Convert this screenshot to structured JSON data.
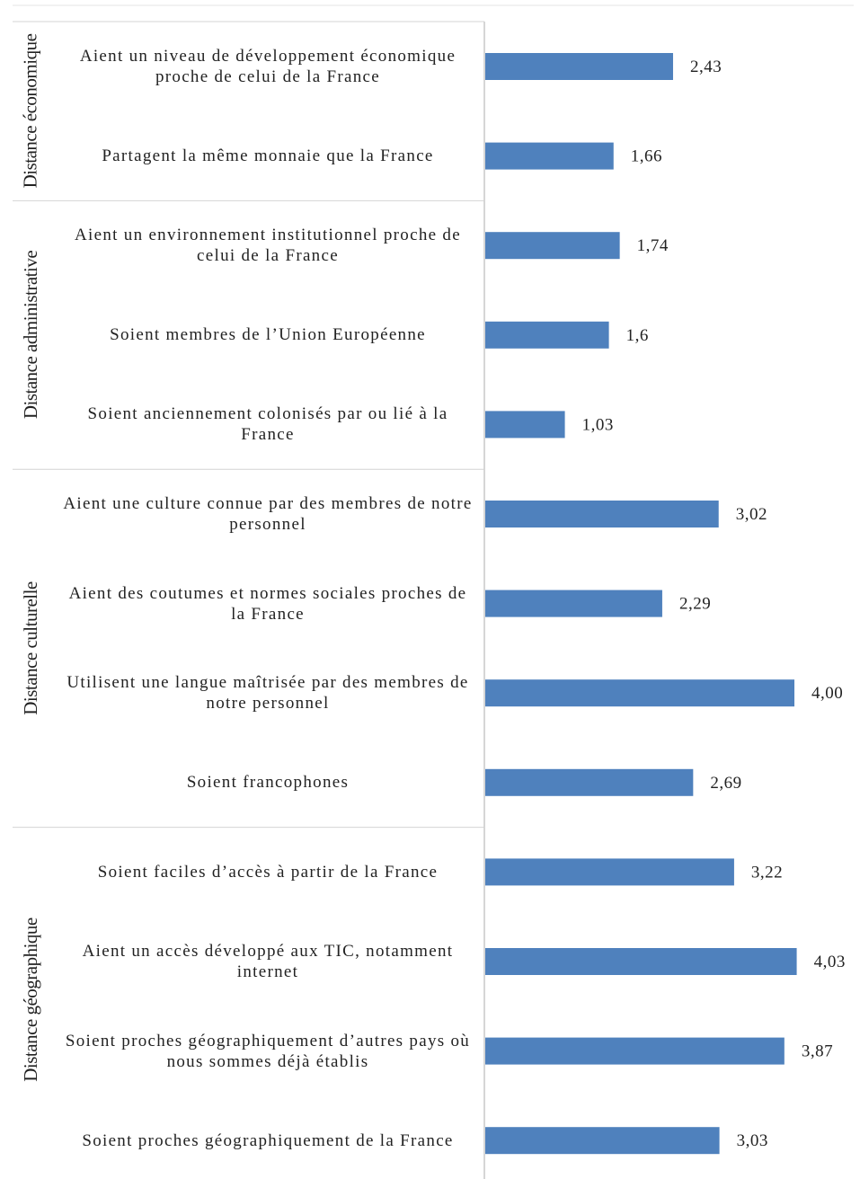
{
  "chart_data": {
    "type": "bar",
    "orientation": "horizontal",
    "bar_color": "#4F81BD",
    "decimal_separator": ",",
    "groups": [
      {
        "label": "Distance économique",
        "items": [
          {
            "category": "Aient un niveau de développement économique proche de celui de la France",
            "value": 2.43,
            "value_label": "2,43"
          },
          {
            "category": "Partagent la même monnaie que la France",
            "value": 1.66,
            "value_label": "1,66"
          }
        ]
      },
      {
        "label": "Distance administrative",
        "items": [
          {
            "category": "Aient un environnement institutionnel proche de celui de la France",
            "value": 1.74,
            "value_label": "1,74"
          },
          {
            "category": "Soient membres de l’Union Européenne",
            "value": 1.6,
            "value_label": "1,6"
          },
          {
            "category": "Soient anciennement colonisés par ou lié à la France",
            "value": 1.03,
            "value_label": "1,03"
          }
        ]
      },
      {
        "label": "Distance culturelle",
        "items": [
          {
            "category": "Aient une culture connue par des membres de notre personnel",
            "value": 3.02,
            "value_label": "3,02"
          },
          {
            "category": "Aient des coutumes et normes sociales proches de la France",
            "value": 2.29,
            "value_label": "2,29"
          },
          {
            "category": "Utilisent une langue maîtrisée par des membres de notre personnel",
            "value": 4.0,
            "value_label": "4,00"
          },
          {
            "category": "Soient francophones",
            "value": 2.69,
            "value_label": "2,69"
          }
        ]
      },
      {
        "label": "Distance géographique",
        "items": [
          {
            "category": "Soient faciles d’accès à partir de la France",
            "value": 3.22,
            "value_label": "3,22"
          },
          {
            "category": "Aient un accès développé aux TIC, notamment internet",
            "value": 4.03,
            "value_label": "4,03"
          },
          {
            "category": "Soient proches géographiquement d’autres pays où nous sommes déjà établis",
            "value": 3.87,
            "value_label": "3,87"
          },
          {
            "category": "Soient proches géographiquement de la France",
            "value": 3.03,
            "value_label": "3,03"
          }
        ]
      }
    ],
    "title": "",
    "xlabel": "",
    "ylabel": "",
    "grid": false,
    "legend": "none"
  }
}
